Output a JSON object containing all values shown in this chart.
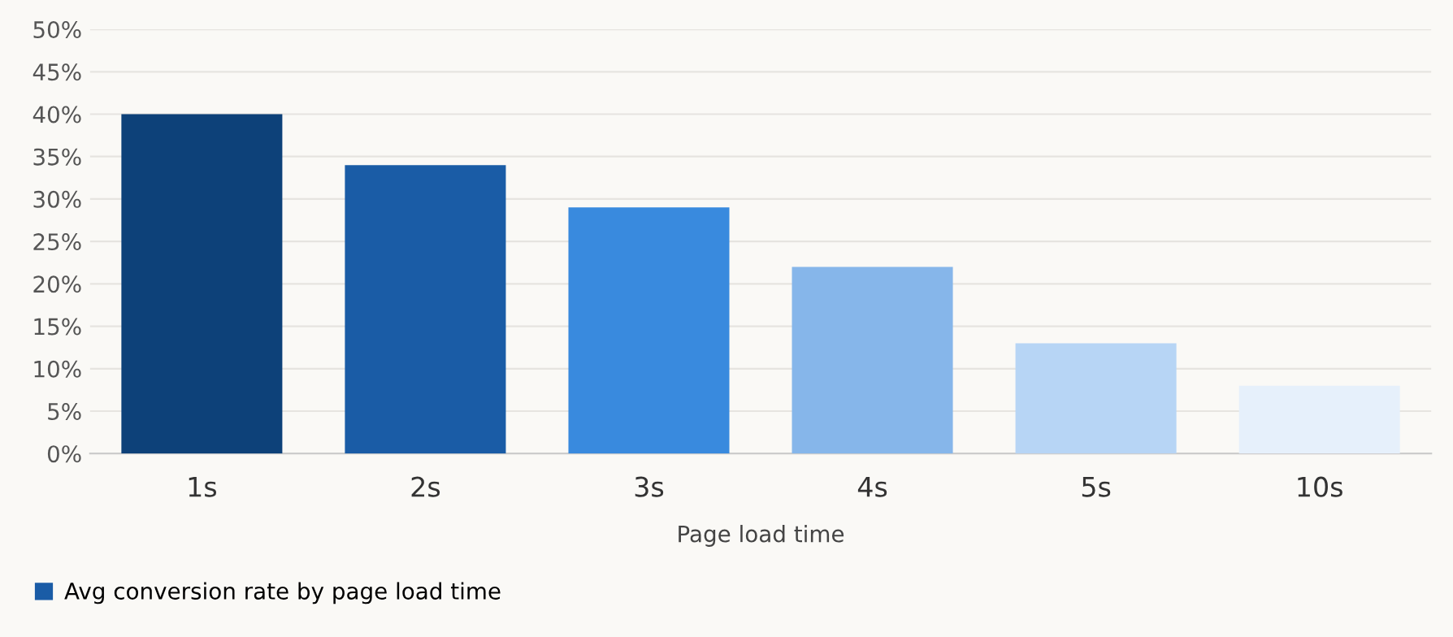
{
  "chart_data": {
    "type": "bar",
    "xlabel": "Page load time",
    "categories": [
      "1s",
      "2s",
      "3s",
      "4s",
      "5s",
      "10s"
    ],
    "series": [
      {
        "name": "Avg conversion rate by page load time",
        "color": "#1a5ca6",
        "colors": [
          "#0d4179",
          "#1a5ca6",
          "#398ade",
          "#86b6ea",
          "#b7d5f5",
          "#e6f0fb"
        ],
        "values": [
          40,
          34,
          29,
          22,
          13,
          8
        ]
      }
    ],
    "ylim": [
      0,
      50
    ],
    "yticks": [
      {
        "value": 0,
        "label": "0%"
      },
      {
        "value": 5,
        "label": "5%"
      },
      {
        "value": 10,
        "label": "10%"
      },
      {
        "value": 15,
        "label": "15%"
      },
      {
        "value": 20,
        "label": "20%"
      },
      {
        "value": 25,
        "label": "25%"
      },
      {
        "value": 30,
        "label": "30%"
      },
      {
        "value": 35,
        "label": "35%"
      },
      {
        "value": 40,
        "label": "40%"
      },
      {
        "value": 45,
        "label": "45%"
      },
      {
        "value": 50,
        "label": "50%"
      }
    ],
    "grid": "y",
    "legend": "bottom left"
  }
}
